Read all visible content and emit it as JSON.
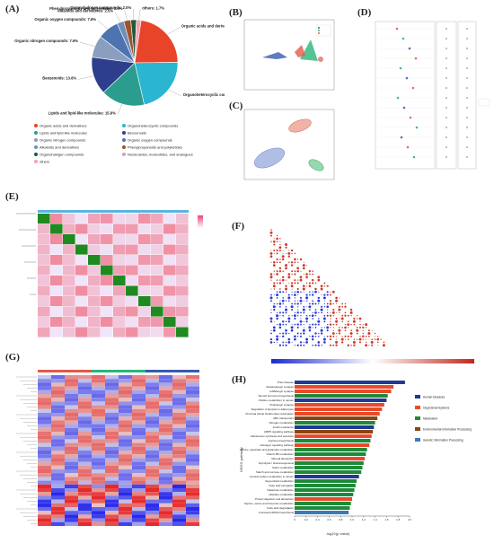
{
  "figure": {
    "panels": [
      "(A)",
      "(B)",
      "(C)",
      "(D)",
      "(E)",
      "(F)",
      "(G)",
      "(H)"
    ]
  },
  "panelA": {
    "slices": [
      {
        "label": "Organic acids and derivatives: 21.5%",
        "value": 21.5,
        "color": "#e8442a"
      },
      {
        "label": "Organoheterocyclic compounds: 20.7%",
        "value": 20.7,
        "color": "#2ab5d0"
      },
      {
        "label": "Lipids and lipid-like molecules: 15.8%",
        "value": 15.8,
        "color": "#2a9d8f"
      },
      {
        "label": "Benzenoids: 13.6%",
        "value": 13.6,
        "color": "#2d3f8c"
      },
      {
        "label": "Organic nitrogen compounds: 7.9%",
        "value": 7.9,
        "color": "#8a9ec0"
      },
      {
        "label": "Organic oxygen compounds: 7.6%",
        "value": 7.6,
        "color": "#4d73b0"
      },
      {
        "label": "Alkaloids and derivatives: 2.5%",
        "value": 2.5,
        "color": "#6f8fb9"
      },
      {
        "label": "Phenylpropanoids and polyketides: 2.5%",
        "value": 2.5,
        "color": "#a0522d"
      },
      {
        "label": "Organohalogen compounds: 2.0%",
        "value": 2.0,
        "color": "#1f5c3a"
      },
      {
        "label": "others: 1.7%",
        "value": 1.7,
        "color": "#f4a2b4"
      }
    ],
    "legend": [
      {
        "label": "Organic acids and derivatives",
        "color": "#e8442a"
      },
      {
        "label": "Organoheterocyclic compounds",
        "color": "#2ab5d0"
      },
      {
        "label": "Lipids and lipid-like molecules",
        "color": "#2a9d8f"
      },
      {
        "label": "Benzenoids",
        "color": "#2d3f8c"
      },
      {
        "label": "Organic nitrogen compounds",
        "color": "#8a9ec0"
      },
      {
        "label": "Organic oxygen compounds",
        "color": "#4d73b0"
      },
      {
        "label": "Alkaloids and derivatives",
        "color": "#6f8fb9"
      },
      {
        "label": "Phenylpropanoids and polyketides",
        "color": "#a0522d"
      },
      {
        "label": "Organohalogen compounds",
        "color": "#1f5c3a"
      },
      {
        "label": "Nucleosides, nucleotides, and analogues",
        "color": "#c9a0d8"
      },
      {
        "label": "others",
        "color": "#f4a2b4"
      }
    ]
  },
  "panelH": {
    "title": "",
    "ylabel": "KEGG pathway",
    "xlabel": "-log10(p value)",
    "xticks": [
      "0",
      "0.2",
      "0.4",
      "0.6",
      "0.8",
      "1.0",
      "1.2",
      "1.4",
      "1.6",
      "1.8",
      "2.0"
    ],
    "legend": [
      {
        "label": "Human Diseases",
        "color": "#1f3a93"
      },
      {
        "label": "Organismal Systems",
        "color": "#e84a2a"
      },
      {
        "label": "Metabolism",
        "color": "#1f8a3a"
      },
      {
        "label": "Environmental Information Processing",
        "color": "#8b4513"
      },
      {
        "label": "Genetic Information Processing",
        "color": "#3a7ab5"
      }
    ]
  },
  "chart_data": [
    {
      "type": "pie",
      "panel": "A",
      "categories": [
        "Organic acids and derivatives",
        "Organoheterocyclic compounds",
        "Lipids and lipid-like molecules",
        "Benzenoids",
        "Organic nitrogen compounds",
        "Organic oxygen compounds",
        "Alkaloids and derivatives",
        "Phenylpropanoids and polyketides",
        "Organohalogen compounds",
        "others"
      ],
      "values": [
        21.5,
        20.7,
        15.8,
        13.6,
        7.9,
        7.6,
        2.5,
        2.5,
        2.0,
        1.7
      ]
    },
    {
      "type": "bar",
      "panel": "H",
      "orientation": "horizontal",
      "xlabel": "-log10(p value)",
      "ylabel": "KEGG pathway",
      "xlim": [
        0,
        2.0
      ],
      "categories": [
        "Prion disease",
        "Glutamatergic synapse",
        "GABAergic synapse",
        "Steroid hormone biosynthesis",
        "Choline metabolism in cancer",
        "Cholinergic synapse",
        "Regulation of lipolysis in adipocytes",
        "Proximal tubule bicarbonate reclamation",
        "ABC transporters",
        "Nitrogen metabolism",
        "Insulin resistance",
        "AMPK signaling pathway",
        "Aldosterone synthesis and secretion",
        "Arginine biosynthesis",
        "Glucagon signaling pathway",
        "Alanine, aspartate and glutamate metabolism",
        "Vitamin B6 metabolism",
        "Mineral absorption",
        "Glycolysis / Gluconeogenesis",
        "Sulfur metabolism",
        "Starch and sucrose metabolism",
        "Central carbon metabolism in cancer",
        "Glycerolipid metabolism",
        "Fatty acid elongation",
        "Galactose metabolism",
        "Histidine metabolism",
        "Protein digestion and absorption",
        "Glycine, serine and threonine metabolism",
        "Fatty acid degradation",
        "Aminoacyl-tRNA biosynthesis"
      ],
      "values": [
        1.92,
        1.72,
        1.68,
        1.62,
        1.6,
        1.56,
        1.52,
        1.48,
        1.44,
        1.4,
        1.38,
        1.36,
        1.34,
        1.32,
        1.3,
        1.26,
        1.24,
        1.22,
        1.2,
        1.18,
        1.16,
        1.12,
        1.08,
        1.06,
        1.04,
        1.02,
        1.0,
        0.98,
        0.96,
        0.94
      ],
      "groups": [
        "Human Diseases",
        "Organismal Systems",
        "Organismal Systems",
        "Metabolism",
        "Human Diseases",
        "Organismal Systems",
        "Organismal Systems",
        "Organismal Systems",
        "Environmental Information Processing",
        "Metabolism",
        "Human Diseases",
        "Environmental Information Processing",
        "Organismal Systems",
        "Metabolism",
        "Organismal Systems",
        "Metabolism",
        "Metabolism",
        "Organismal Systems",
        "Metabolism",
        "Metabolism",
        "Metabolism",
        "Human Diseases",
        "Metabolism",
        "Metabolism",
        "Metabolism",
        "Metabolism",
        "Organismal Systems",
        "Metabolism",
        "Metabolism",
        "Genetic Information Processing"
      ]
    }
  ]
}
